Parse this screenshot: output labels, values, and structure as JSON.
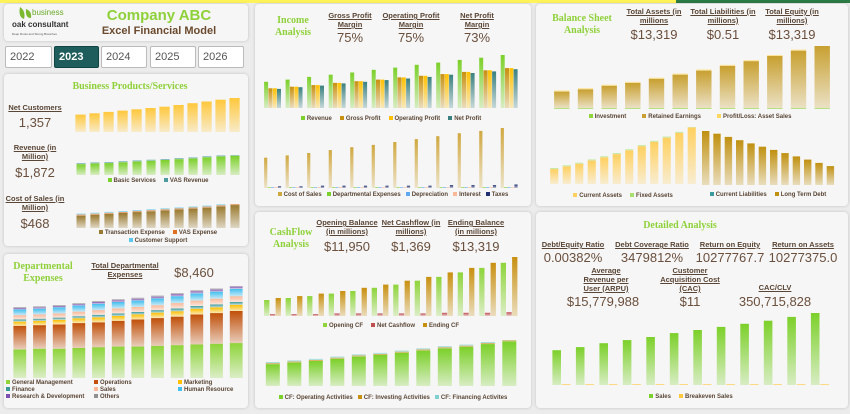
{
  "header": {
    "logo_text_1": "business",
    "logo_text_2": "oak consultant",
    "logo_tagline": "Deep Roots and Strong Branches",
    "title": "Company ABC",
    "subtitle": "Excel Financial Model"
  },
  "years": {
    "items": [
      "2022",
      "2023",
      "2024",
      "2025",
      "2026"
    ],
    "selected": "2023"
  },
  "business": {
    "title": "Business Products/Services",
    "net_customers_label": "Net Customers",
    "net_customers": "1,357",
    "revenue_label": "Revenue (in Million)",
    "revenue": "$1,872",
    "cost_label": "Cost of Sales (in Million)",
    "cost": "$468"
  },
  "departmental": {
    "title": "Departmental Expenses",
    "total_label": "Total Departmental Expenses",
    "total": "$8,460"
  },
  "income": {
    "title": "Income Analysis",
    "kpis": [
      {
        "label": "Gross Profit Margin",
        "value": "75%"
      },
      {
        "label": "Operating Profit Margin",
        "value": "75%"
      },
      {
        "label": "Net Profit Margin",
        "value": "73%"
      }
    ]
  },
  "cashflow": {
    "title": "CashFlow Analysis",
    "kpis": [
      {
        "label": "Opening Balance (in millions)",
        "value": "$11,950"
      },
      {
        "label": "Net Cashflow (in millions)",
        "value": "$1,369"
      },
      {
        "label": "Ending Balance (in millions)",
        "value": "$13,319"
      }
    ]
  },
  "balance": {
    "title": "Balance Sheet Analysis",
    "kpis": [
      {
        "label": "Total Assets (in millions",
        "value": "$13,319"
      },
      {
        "label": "Total Liabilities (in millions)",
        "value": "$0.51"
      },
      {
        "label": "Total Equity (in millions)",
        "value": "$13,319"
      }
    ]
  },
  "detailed": {
    "title": "Detailed Analysis",
    "kpis": [
      {
        "label": "Debt/Equity Ratio",
        "value": "0.00382%"
      },
      {
        "label": "Debt Coverage Ratio",
        "value": "3479812%"
      },
      {
        "label": "Return on Equity",
        "value": "10277767.7"
      },
      {
        "label": "Return on Assets",
        "value": "10277375.0"
      },
      {
        "label": "Average Revenue per User (ARPU)",
        "value": "$15,779,988"
      },
      {
        "label": "Customer Acquisition Cost (CAC)",
        "value": "$11"
      },
      {
        "label": "CAC/CLV",
        "value": "350,715,828"
      }
    ]
  },
  "chart_data": [
    {
      "id": "net-customers",
      "type": "bar",
      "stacked": false,
      "series": [
        {
          "color": "#ffc83d",
          "values": [
            40,
            43,
            46,
            49,
            52,
            55,
            58,
            62,
            66,
            70,
            74,
            78
          ]
        }
      ]
    },
    {
      "id": "revenue",
      "type": "bar",
      "stacked": true,
      "series": [
        {
          "name": "Basic Services",
          "color": "#7cd02a",
          "values": [
            28,
            30,
            31,
            33,
            35,
            37,
            39,
            41,
            43,
            46,
            48,
            50
          ]
        },
        {
          "name": "VAS Revenue",
          "color": "#4a9aa0",
          "values": [
            2,
            2,
            2,
            2,
            2,
            2,
            2,
            2,
            2,
            2,
            2,
            2
          ]
        }
      ]
    },
    {
      "id": "cost-of-sales",
      "type": "bar",
      "stacked": true,
      "series": [
        {
          "name": "Transaction Expense",
          "color": "#9a7a30",
          "values": [
            28,
            30,
            32,
            34,
            36,
            38,
            40,
            42,
            44,
            46,
            49,
            52
          ]
        },
        {
          "name": "VAS Expense",
          "color": "#e07020",
          "values": [
            0.5,
            0.5,
            0.5,
            0.5,
            0.5,
            0.5,
            0.5,
            0.5,
            0.5,
            0.5,
            0.5,
            0.5
          ]
        },
        {
          "name": "Customer Support",
          "color": "#5cc8f0",
          "values": [
            1.5,
            1.5,
            1.5,
            1.5,
            1.5,
            1.5,
            1.5,
            1.5,
            1.5,
            1.5,
            1.5,
            2
          ]
        }
      ]
    },
    {
      "id": "departmental",
      "type": "bar",
      "stacked": true,
      "series": [
        {
          "name": "General Management",
          "color": "#8ed43a",
          "values": [
            40,
            41,
            41,
            42,
            43,
            44,
            44,
            45,
            46,
            47,
            48,
            49
          ]
        },
        {
          "name": "Operations",
          "color": "#c0500a",
          "values": [
            33,
            33,
            34,
            35,
            35,
            36,
            38,
            39,
            40,
            42,
            43,
            45
          ]
        },
        {
          "name": "Marketing",
          "color": "#ffc000",
          "values": [
            6,
            6,
            6.5,
            6.5,
            7,
            7,
            7,
            7.5,
            7.5,
            8,
            8,
            8.5
          ]
        },
        {
          "name": "Finance",
          "color": "#3a9a9a",
          "values": [
            3,
            3,
            3,
            3,
            3.5,
            3.5,
            3.5,
            3.5,
            4,
            4,
            4,
            4
          ]
        },
        {
          "name": "Sales",
          "color": "#fbb898",
          "values": [
            6,
            6,
            6,
            6.5,
            6.5,
            7,
            7,
            7,
            7.5,
            7.5,
            8,
            8
          ]
        },
        {
          "name": "Human Resource",
          "color": "#40c0f0",
          "values": [
            8,
            8,
            8.5,
            8.5,
            9,
            9,
            9,
            9.5,
            9.5,
            10,
            10,
            10.5
          ]
        },
        {
          "name": "Research & Development",
          "color": "#8050b0",
          "values": [
            2,
            2,
            2,
            2,
            2.5,
            2.5,
            2.5,
            2.5,
            3,
            3,
            3,
            3
          ]
        },
        {
          "name": "Others",
          "color": "#909090",
          "values": [
            1,
            1,
            1,
            1,
            1,
            1,
            1,
            1,
            1,
            1,
            1,
            1
          ]
        }
      ]
    },
    {
      "id": "income-profit",
      "type": "bar",
      "stacked": false,
      "series": [
        {
          "name": "Revenue",
          "color": "#7cd02a",
          "values": [
            48,
            52,
            57,
            61,
            65,
            70,
            74,
            79,
            83,
            88,
            92,
            97
          ]
        },
        {
          "name": "Gross Profit",
          "color": "#c89010",
          "values": [
            36,
            39,
            42,
            46,
            49,
            52,
            56,
            59,
            62,
            66,
            69,
            73
          ]
        },
        {
          "name": "Operating Profit",
          "color": "#ffc000",
          "values": [
            36,
            39,
            42,
            46,
            49,
            52,
            56,
            59,
            62,
            66,
            69,
            73
          ]
        },
        {
          "name": "Net Profit",
          "color": "#3a8080",
          "values": [
            35,
            38,
            41,
            45,
            48,
            51,
            54,
            57,
            61,
            64,
            67,
            71
          ]
        }
      ]
    },
    {
      "id": "income-costs",
      "type": "bar",
      "stacked": false,
      "series": [
        {
          "name": "Cost of Sales",
          "color": "#d0a840",
          "values": [
            52,
            56,
            60,
            65,
            70,
            74,
            79,
            84,
            89,
            94,
            98,
            103
          ]
        },
        {
          "name": "Departmental Expenses",
          "color": "#7cd02a",
          "values": [
            1,
            1,
            1,
            1,
            1,
            1,
            1,
            1,
            1,
            1,
            1,
            1
          ]
        },
        {
          "name": "Depreciation",
          "color": "#60a8f0",
          "values": [
            1,
            1,
            1,
            1,
            1,
            1,
            1,
            1,
            1,
            1,
            1,
            1
          ]
        },
        {
          "name": "Interest",
          "color": "#fbb898",
          "values": [
            1,
            1,
            1,
            1,
            1,
            1,
            1,
            1,
            1,
            1,
            1,
            1
          ]
        },
        {
          "name": "Taxes",
          "color": "#203070",
          "values": [
            3,
            3,
            4,
            4,
            4,
            4,
            4,
            4,
            5,
            5,
            5,
            6
          ]
        }
      ]
    },
    {
      "id": "cashflow-balance",
      "type": "bar",
      "stacked": false,
      "series": [
        {
          "name": "Opening CF",
          "color": "#8ed43a",
          "values": [
            25,
            28,
            31,
            35,
            39,
            44,
            49,
            55,
            61,
            68,
            75,
            83
          ]
        },
        {
          "name": "Net Cashflow",
          "color": "#c05050",
          "values": [
            3,
            3,
            3,
            4,
            4,
            4,
            4,
            4,
            5,
            5,
            5,
            6
          ]
        },
        {
          "name": "Ending CF",
          "color": "#c89010",
          "values": [
            28,
            31,
            35,
            39,
            44,
            49,
            55,
            61,
            68,
            75,
            83,
            92
          ]
        }
      ]
    },
    {
      "id": "cashflow-activities",
      "type": "bar",
      "stacked": true,
      "series": [
        {
          "name": "CF: Operating Activities",
          "color": "#7cd02a",
          "values": [
            40,
            43,
            46,
            50,
            54,
            57,
            61,
            65,
            69,
            72,
            77,
            82
          ]
        },
        {
          "name": "CF: Investing Activities",
          "color": "#c89010",
          "values": [
            0.5,
            0.5,
            0.5,
            0.5,
            0.5,
            0.5,
            0.5,
            0.5,
            0.5,
            0.5,
            0.5,
            0.5
          ]
        },
        {
          "name": "CF: Financing Activites",
          "color": "#80d0d0",
          "values": [
            2,
            2,
            2,
            2,
            2,
            2,
            2,
            2,
            2,
            2,
            2,
            2
          ]
        }
      ]
    },
    {
      "id": "balance-equity",
      "type": "bar",
      "stacked": true,
      "series": [
        {
          "name": "Investment",
          "color": "#8ed43a",
          "values": [
            0.3,
            0.3,
            0.3,
            0.3,
            0.3,
            0.3,
            0.3,
            0.3,
            0.3,
            0.3,
            0.3,
            0.3
          ]
        },
        {
          "name": "Retained Earnings",
          "color": "#c8a030",
          "values": [
            28,
            32,
            38,
            43,
            50,
            57,
            64,
            72,
            80,
            89,
            98,
            107
          ]
        },
        {
          "name": "Profit/Loss: Asset Sales",
          "color": "#ffd860",
          "values": [
            0.5,
            0.5,
            0.5,
            0.5,
            0.5,
            0.5,
            0.5,
            0.5,
            0.5,
            0.5,
            0.5,
            0.5
          ]
        }
      ]
    },
    {
      "id": "balance-assets",
      "type": "bar",
      "stacked": true,
      "series": [
        {
          "name": "Current Assets",
          "color": "#ffd060",
          "values": [
            28,
            33,
            38,
            44,
            50,
            56,
            63,
            71,
            79,
            87,
            96,
            106
          ]
        },
        {
          "name": "Fixed Assets",
          "color": "#a8e070",
          "values": [
            1,
            1,
            1,
            1,
            1,
            1,
            1,
            1,
            1,
            1,
            1,
            1
          ]
        }
      ]
    },
    {
      "id": "balance-liabilities",
      "type": "bar",
      "stacked": true,
      "series": [
        {
          "name": "Current Liabilities",
          "color": "#3a9aa0",
          "values": [
            0,
            0,
            0,
            0,
            0,
            0,
            0,
            0,
            0,
            0,
            0,
            0
          ]
        },
        {
          "name": "Long Term Debt",
          "color": "#c09010",
          "values": [
            100,
            95,
            89,
            83,
            77,
            71,
            65,
            59,
            53,
            47,
            41,
            35
          ]
        }
      ]
    },
    {
      "id": "sales",
      "type": "bar",
      "stacked": false,
      "series": [
        {
          "name": "Sales",
          "color": "#7cd02a",
          "values": [
            45,
            49,
            54,
            58,
            62,
            67,
            71,
            75,
            79,
            83,
            88,
            93
          ]
        },
        {
          "name": "Breakeven Sales",
          "color": "#ffc83d",
          "values": [
            0.8,
            0.8,
            0.8,
            0.8,
            0.8,
            0.8,
            0.8,
            0.8,
            0.8,
            0.8,
            0.8,
            0.8
          ]
        }
      ]
    }
  ]
}
